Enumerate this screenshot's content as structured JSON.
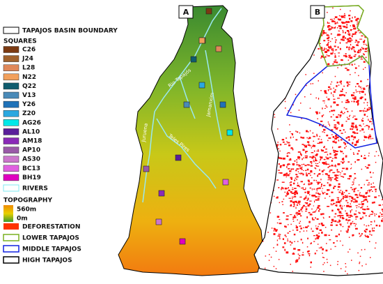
{
  "legend": {
    "boundary": "TAPAJOS BASIN BOUNDARY",
    "squares_title": "SQUARES",
    "squares": [
      {
        "label": "C26",
        "color": "#7b3a12"
      },
      {
        "label": "J24",
        "color": "#a0622d"
      },
      {
        "label": "L28",
        "color": "#e0885a"
      },
      {
        "label": "N22",
        "color": "#f2a05c"
      },
      {
        "label": "Q22",
        "color": "#0f5c6e"
      },
      {
        "label": "V13",
        "color": "#4a8ab8"
      },
      {
        "label": "Y26",
        "color": "#1f72b8"
      },
      {
        "label": "Z20",
        "color": "#2aa8e0"
      },
      {
        "label": "AG26",
        "color": "#00e8e8"
      },
      {
        "label": "AL10",
        "color": "#5a1f9a"
      },
      {
        "label": "AM18",
        "color": "#8a2ab8"
      },
      {
        "label": "AP10",
        "color": "#9a5aa8"
      },
      {
        "label": "AS30",
        "color": "#cc77cc"
      },
      {
        "label": "BC13",
        "color": "#e060e0"
      },
      {
        "label": "BH19",
        "color": "#e000c0"
      }
    ],
    "rivers": "RIVERS",
    "topography": "TOPOGRAPHY",
    "topo_max": "560m",
    "topo_min": "0m",
    "deforestation": "DEFORESTATION",
    "lower": "LOWER TAPAJOS",
    "middle": "MIDDLE TAPAJOS",
    "high": "HIGH TAPAJOS"
  },
  "panels": {
    "a": "A",
    "b": "B"
  },
  "river_names": {
    "tapajos": "Rio Tapajós",
    "jamanxim": "Jamanxim",
    "juruena": "Juruena",
    "teles_pires": "Teles Pires"
  }
}
